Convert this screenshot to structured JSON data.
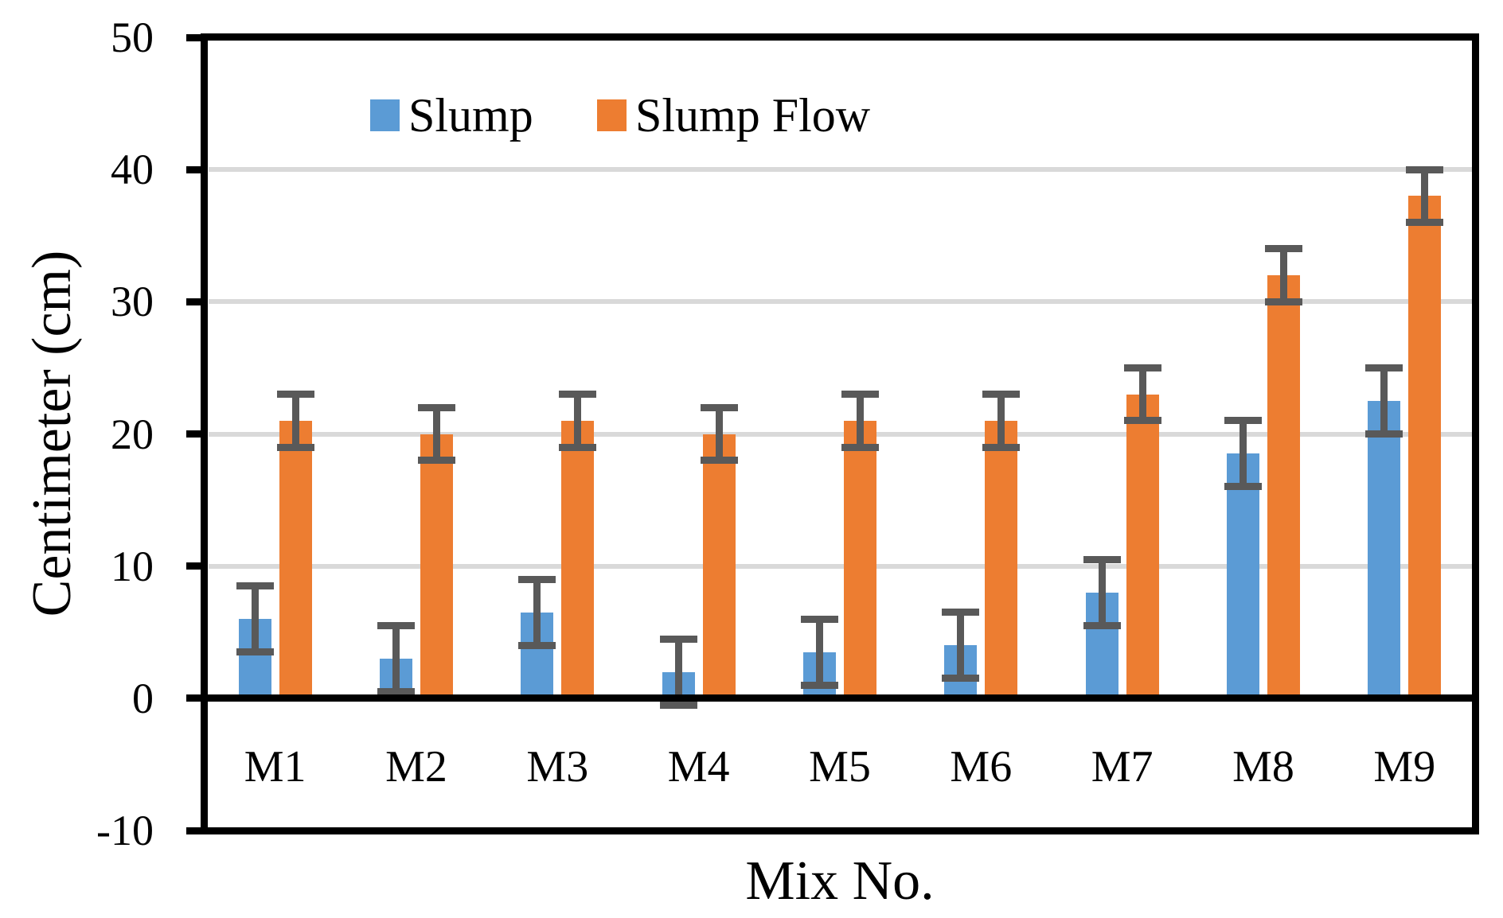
{
  "chart_data": {
    "type": "bar",
    "title": "",
    "xlabel": "Mix No.",
    "ylabel": "Centimeter (cm)",
    "categories": [
      "M1",
      "M2",
      "M3",
      "M4",
      "M5",
      "M6",
      "M7",
      "M8",
      "M9"
    ],
    "series": [
      {
        "name": "Slump",
        "color": "#5B9BD5",
        "values": [
          6,
          3,
          6.5,
          2,
          3.5,
          4,
          8,
          18.5,
          22.5
        ],
        "error": 2.5
      },
      {
        "name": "Slump Flow",
        "color": "#ED7D31",
        "values": [
          21,
          20,
          21,
          20,
          21,
          21,
          23,
          32,
          38
        ],
        "error": 2
      }
    ],
    "ylim": [
      -10,
      50
    ],
    "yticks": [
      50,
      40,
      30,
      20,
      10,
      0,
      -10
    ],
    "gridlines": [
      10,
      20,
      30,
      40
    ],
    "grid": "horizontal-only",
    "legend_position": "top-center-inside",
    "bar_baseline": 0,
    "error_bar_color": "#595959",
    "gridline_color": "#D9D9D9",
    "axis_color": "#000000",
    "background_color": "#FFFFFF"
  }
}
